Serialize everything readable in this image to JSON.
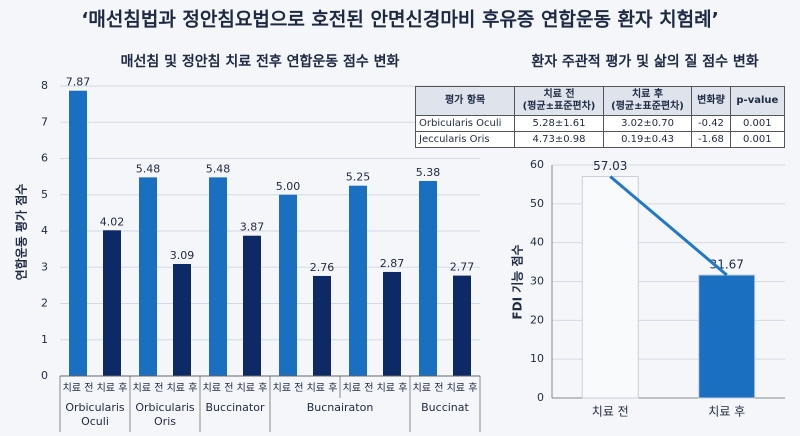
{
  "title": "‘매선침법과 정안침요법으로 호전된 안면신경마비 후유증 연합운동 환자 치험례’",
  "chart_data": [
    {
      "type": "bar",
      "title": "매선침 및 정안침 치료 전후 연합운동 점수 변화",
      "y_label": "연합운동 평가 점수",
      "categories": [
        "Orbicularis Oculi",
        "Orbicularis Oris",
        "Buccinator",
        "Bucnairaton",
        null,
        "Buccinat"
      ],
      "series": [
        {
          "name": "치료 전",
          "color": "#1a6fc0",
          "values": [
            7.87,
            5.48,
            5.48,
            5.0,
            5.25,
            5.38
          ],
          "value_labels": [
            "7.87",
            "5.48",
            "5.48",
            "5.00",
            "5.25",
            "5.38"
          ]
        },
        {
          "name": "치료 후",
          "color": "#0e2a66",
          "values": [
            4.02,
            3.09,
            3.87,
            2.76,
            2.87,
            2.77
          ]
        }
      ],
      "ylim": [
        0,
        8
      ],
      "yticks": [
        0,
        1,
        2,
        3,
        4,
        5,
        6,
        7,
        8
      ],
      "grid": true
    },
    {
      "type": "bar",
      "y_label": "FDI 기능 점수",
      "categories": [
        "치료 전",
        "치료 후"
      ],
      "values": [
        57.03,
        31.67
      ],
      "colors": [
        "#f9fafc",
        "#1a6fc0"
      ],
      "line_color": "#1f78c8",
      "ylim": [
        0,
        60
      ],
      "yticks": [
        0,
        10,
        20,
        30,
        40,
        50,
        60
      ],
      "grid": true
    }
  ],
  "table": {
    "title": "환자 주관적 평가 및 삶의 질 점수 변화",
    "header": [
      "평가 항목",
      "치료 전\n(평균±표준편차)",
      "치료 후\n(평균±표준편차)",
      "변화량",
      "p-value"
    ],
    "rows": [
      [
        "Orbicularis Oculi",
        "5.28±1.61",
        "3.02±0.70",
        "-0.42",
        "0.001"
      ],
      [
        "Jeccularis Oris",
        "4.73±0.98",
        "0.19±0.43",
        "-1.68",
        "0.001"
      ]
    ]
  }
}
